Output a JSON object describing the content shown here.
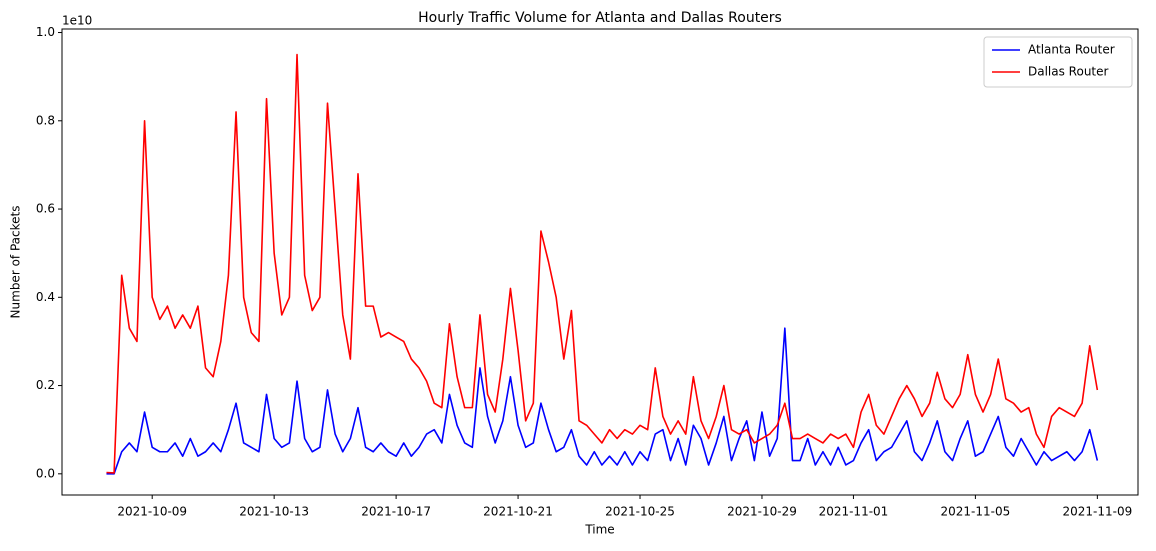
{
  "chart_data": {
    "type": "line",
    "title": "Hourly Traffic Volume for Atlanta and Dallas Routers",
    "x_label": "Time",
    "y_label": "Number of Packets",
    "y_offset_label": "1e10",
    "legend": "upper right",
    "grid": false,
    "xlim": [
      "2021-10-06 01:00",
      "2021-11-10 08:00"
    ],
    "xticks": [
      {
        "value": "2021-10-09 00:00",
        "label": "2021-10-09"
      },
      {
        "value": "2021-10-13 00:00",
        "label": "2021-10-13"
      },
      {
        "value": "2021-10-17 00:00",
        "label": "2021-10-17"
      },
      {
        "value": "2021-10-21 00:00",
        "label": "2021-10-21"
      },
      {
        "value": "2021-10-25 00:00",
        "label": "2021-10-25"
      },
      {
        "value": "2021-10-29 00:00",
        "label": "2021-10-29"
      },
      {
        "value": "2021-11-01 00:00",
        "label": "2021-11-01"
      },
      {
        "value": "2021-11-05 00:00",
        "label": "2021-11-05"
      },
      {
        "value": "2021-11-09 00:00",
        "label": "2021-11-09"
      }
    ],
    "ylim": [
      -0.048,
      1.008
    ],
    "yticks": [
      {
        "value": 0,
        "label": "0.0"
      },
      0.2,
      0.4,
      0.6,
      0.8,
      {
        "value": 1,
        "label": "1.0"
      }
    ],
    "x": [
      "2021-10-07 12:00",
      "2021-10-07 18:00",
      "2021-10-08 00:00",
      "2021-10-08 06:00",
      "2021-10-08 12:00",
      "2021-10-08 18:00",
      "2021-10-09 00:00",
      "2021-10-09 06:00",
      "2021-10-09 12:00",
      "2021-10-09 18:00",
      "2021-10-10 00:00",
      "2021-10-10 06:00",
      "2021-10-10 12:00",
      "2021-10-10 18:00",
      "2021-10-11 00:00",
      "2021-10-11 06:00",
      "2021-10-11 12:00",
      "2021-10-11 18:00",
      "2021-10-12 00:00",
      "2021-10-12 06:00",
      "2021-10-12 12:00",
      "2021-10-12 18:00",
      "2021-10-13 00:00",
      "2021-10-13 06:00",
      "2021-10-13 12:00",
      "2021-10-13 18:00",
      "2021-10-14 00:00",
      "2021-10-14 06:00",
      "2021-10-14 12:00",
      "2021-10-14 18:00",
      "2021-10-15 00:00",
      "2021-10-15 06:00",
      "2021-10-15 12:00",
      "2021-10-15 18:00",
      "2021-10-16 00:00",
      "2021-10-16 06:00",
      "2021-10-16 12:00",
      "2021-10-16 18:00",
      "2021-10-17 00:00",
      "2021-10-17 06:00",
      "2021-10-17 12:00",
      "2021-10-17 18:00",
      "2021-10-18 00:00",
      "2021-10-18 06:00",
      "2021-10-18 12:00",
      "2021-10-18 18:00",
      "2021-10-19 00:00",
      "2021-10-19 06:00",
      "2021-10-19 12:00",
      "2021-10-19 18:00",
      "2021-10-20 00:00",
      "2021-10-20 06:00",
      "2021-10-20 12:00",
      "2021-10-20 18:00",
      "2021-10-21 00:00",
      "2021-10-21 06:00",
      "2021-10-21 12:00",
      "2021-10-21 18:00",
      "2021-10-22 00:00",
      "2021-10-22 06:00",
      "2021-10-22 12:00",
      "2021-10-22 18:00",
      "2021-10-23 00:00",
      "2021-10-23 06:00",
      "2021-10-23 12:00",
      "2021-10-23 18:00",
      "2021-10-24 00:00",
      "2021-10-24 06:00",
      "2021-10-24 12:00",
      "2021-10-24 18:00",
      "2021-10-25 00:00",
      "2021-10-25 06:00",
      "2021-10-25 12:00",
      "2021-10-25 18:00",
      "2021-10-26 00:00",
      "2021-10-26 06:00",
      "2021-10-26 12:00",
      "2021-10-26 18:00",
      "2021-10-27 00:00",
      "2021-10-27 06:00",
      "2021-10-27 12:00",
      "2021-10-27 18:00",
      "2021-10-28 00:00",
      "2021-10-28 06:00",
      "2021-10-28 12:00",
      "2021-10-28 18:00",
      "2021-10-29 00:00",
      "2021-10-29 06:00",
      "2021-10-29 12:00",
      "2021-10-29 18:00",
      "2021-10-30 00:00",
      "2021-10-30 06:00",
      "2021-10-30 12:00",
      "2021-10-30 18:00",
      "2021-10-31 00:00",
      "2021-10-31 06:00",
      "2021-10-31 12:00",
      "2021-10-31 18:00",
      "2021-11-01 00:00",
      "2021-11-01 06:00",
      "2021-11-01 12:00",
      "2021-11-01 18:00",
      "2021-11-02 00:00",
      "2021-11-02 06:00",
      "2021-11-02 12:00",
      "2021-11-02 18:00",
      "2021-11-03 00:00",
      "2021-11-03 06:00",
      "2021-11-03 12:00",
      "2021-11-03 18:00",
      "2021-11-04 00:00",
      "2021-11-04 06:00",
      "2021-11-04 12:00",
      "2021-11-04 18:00",
      "2021-11-05 00:00",
      "2021-11-05 06:00",
      "2021-11-05 12:00",
      "2021-11-05 18:00",
      "2021-11-06 00:00",
      "2021-11-06 06:00",
      "2021-11-06 12:00",
      "2021-11-06 18:00",
      "2021-11-07 00:00",
      "2021-11-07 06:00",
      "2021-11-07 12:00",
      "2021-11-07 18:00",
      "2021-11-08 00:00",
      "2021-11-08 06:00",
      "2021-11-08 12:00",
      "2021-11-08 18:00",
      "2021-11-09 00:00"
    ],
    "series": [
      {
        "name": "Atlanta Router",
        "color": "#0000ff",
        "values": [
          0.0,
          0.0,
          0.05,
          0.07,
          0.05,
          0.14,
          0.06,
          0.05,
          0.05,
          0.07,
          0.04,
          0.08,
          0.04,
          0.05,
          0.07,
          0.05,
          0.1,
          0.16,
          0.07,
          0.06,
          0.05,
          0.18,
          0.08,
          0.06,
          0.07,
          0.21,
          0.08,
          0.05,
          0.06,
          0.19,
          0.09,
          0.05,
          0.08,
          0.15,
          0.06,
          0.05,
          0.07,
          0.05,
          0.04,
          0.07,
          0.04,
          0.06,
          0.09,
          0.1,
          0.07,
          0.18,
          0.11,
          0.07,
          0.06,
          0.24,
          0.13,
          0.07,
          0.12,
          0.22,
          0.11,
          0.06,
          0.07,
          0.16,
          0.1,
          0.05,
          0.06,
          0.1,
          0.04,
          0.02,
          0.05,
          0.02,
          0.04,
          0.02,
          0.05,
          0.02,
          0.05,
          0.03,
          0.09,
          0.1,
          0.03,
          0.08,
          0.02,
          0.11,
          0.08,
          0.02,
          0.07,
          0.13,
          0.03,
          0.08,
          0.12,
          0.03,
          0.14,
          0.04,
          0.08,
          0.33,
          0.03,
          0.03,
          0.08,
          0.02,
          0.05,
          0.02,
          0.06,
          0.02,
          0.03,
          0.07,
          0.1,
          0.03,
          0.05,
          0.06,
          0.09,
          0.12,
          0.05,
          0.03,
          0.07,
          0.12,
          0.05,
          0.03,
          0.08,
          0.12,
          0.04,
          0.05,
          0.09,
          0.13,
          0.06,
          0.04,
          0.08,
          0.05,
          0.02,
          0.05,
          0.03,
          0.04,
          0.05,
          0.03,
          0.05,
          0.1,
          0.03
        ]
      },
      {
        "name": "Dallas Router",
        "color": "#ff0000",
        "values": [
          0.003,
          0.002,
          0.45,
          0.33,
          0.3,
          0.8,
          0.4,
          0.35,
          0.38,
          0.33,
          0.36,
          0.33,
          0.38,
          0.24,
          0.22,
          0.3,
          0.45,
          0.82,
          0.4,
          0.32,
          0.3,
          0.85,
          0.5,
          0.36,
          0.4,
          0.95,
          0.45,
          0.37,
          0.4,
          0.84,
          0.6,
          0.36,
          0.26,
          0.68,
          0.38,
          0.38,
          0.31,
          0.32,
          0.31,
          0.3,
          0.26,
          0.24,
          0.21,
          0.16,
          0.15,
          0.34,
          0.22,
          0.15,
          0.15,
          0.36,
          0.18,
          0.14,
          0.26,
          0.42,
          0.28,
          0.12,
          0.16,
          0.55,
          0.48,
          0.4,
          0.26,
          0.37,
          0.12,
          0.11,
          0.09,
          0.07,
          0.1,
          0.08,
          0.1,
          0.09,
          0.11,
          0.1,
          0.24,
          0.13,
          0.09,
          0.12,
          0.09,
          0.22,
          0.12,
          0.08,
          0.13,
          0.2,
          0.1,
          0.09,
          0.1,
          0.07,
          0.08,
          0.09,
          0.11,
          0.16,
          0.08,
          0.08,
          0.09,
          0.08,
          0.07,
          0.09,
          0.08,
          0.09,
          0.06,
          0.14,
          0.18,
          0.11,
          0.09,
          0.13,
          0.17,
          0.2,
          0.17,
          0.13,
          0.16,
          0.23,
          0.17,
          0.15,
          0.18,
          0.27,
          0.18,
          0.14,
          0.18,
          0.26,
          0.17,
          0.16,
          0.14,
          0.15,
          0.09,
          0.06,
          0.13,
          0.15,
          0.14,
          0.13,
          0.16,
          0.29,
          0.19
        ]
      }
    ]
  }
}
